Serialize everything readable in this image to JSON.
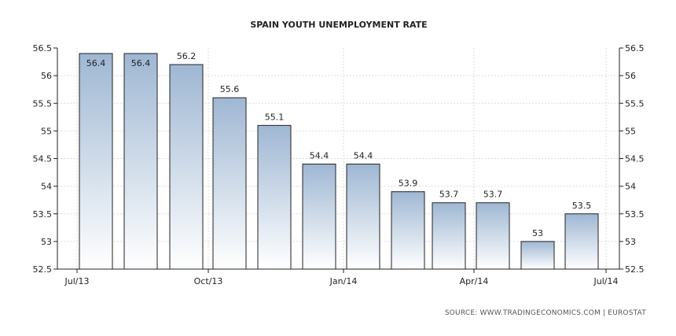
{
  "chart_data": {
    "type": "bar",
    "title": "SPAIN YOUTH UNEMPLOYMENT RATE",
    "xlabel": "",
    "ylabel": "",
    "ylim": [
      52.5,
      56.5
    ],
    "y_ticks": [
      "52.5",
      "53",
      "53.5",
      "54",
      "54.5",
      "55",
      "55.5",
      "56",
      "56.5"
    ],
    "x_tick_labels": [
      "Jul/13",
      "Oct/13",
      "Jan/14",
      "Apr/14",
      "Jul/14"
    ],
    "categories": [
      "2013-07",
      "2013-08",
      "2013-09",
      "2013-10",
      "2013-11",
      "2013-12",
      "2014-01",
      "2014-02",
      "2014-03",
      "2014-04",
      "2014-05",
      "2014-06"
    ],
    "values": [
      56.4,
      56.4,
      56.2,
      55.6,
      55.1,
      54.4,
      54.4,
      53.9,
      53.7,
      53.7,
      53.0,
      53.5
    ],
    "value_labels": [
      "56.4",
      "56.4",
      "56.2",
      "55.6",
      "55.1",
      "54.4",
      "54.4",
      "53.9",
      "53.7",
      "53.7",
      "53",
      "53.5"
    ],
    "grid": true,
    "legend": "none",
    "colors": {
      "bar_top": "#9fb7d3",
      "bar_bottom": "#ffffff",
      "bar_stroke": "#222222",
      "grid": "#dddddd"
    }
  },
  "source_text": "SOURCE:  WWW.TRADINGECONOMICS.COM  |  EUROSTAT"
}
